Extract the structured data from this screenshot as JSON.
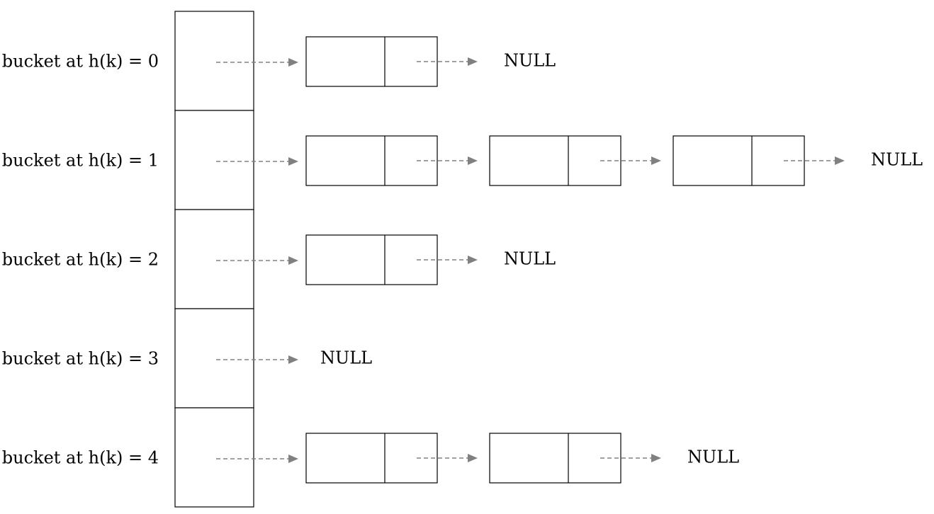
{
  "diagram": {
    "colors": {
      "arrow": "#808080",
      "stroke": "#000000",
      "background": "#ffffff"
    },
    "null_label": "NULL",
    "buckets": [
      {
        "label": "bucket at h(k) = 0",
        "nodes": 1
      },
      {
        "label": "bucket at h(k) = 1",
        "nodes": 3
      },
      {
        "label": "bucket at h(k) = 2",
        "nodes": 1
      },
      {
        "label": "bucket at h(k) = 3",
        "nodes": 0
      },
      {
        "label": "bucket at h(k) = 4",
        "nodes": 2
      }
    ]
  }
}
